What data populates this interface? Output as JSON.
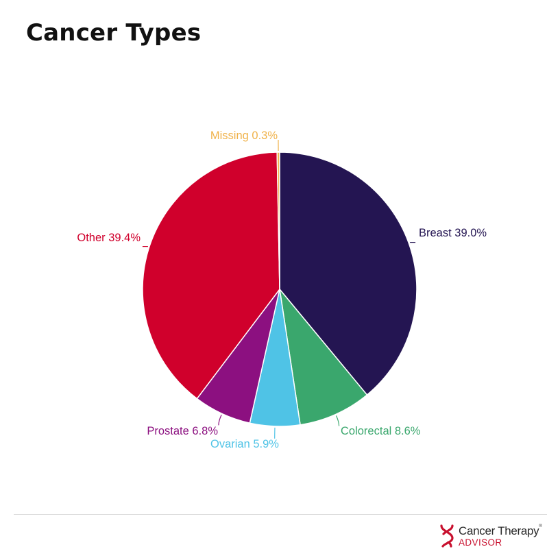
{
  "title": "Cancer Types",
  "chart_data": {
    "type": "pie",
    "slices": [
      {
        "name": "Breast",
        "value": 39.0,
        "label": "Breast 39.0%",
        "color": "#241552"
      },
      {
        "name": "Colorectal",
        "value": 8.6,
        "label": "Colorectal 8.6%",
        "color": "#3aa76d"
      },
      {
        "name": "Ovarian",
        "value": 5.9,
        "label": "Ovarian 5.9%",
        "color": "#4fc3e6"
      },
      {
        "name": "Prostate",
        "value": 6.8,
        "label": "Prostate 6.8%",
        "color": "#8c1080"
      },
      {
        "name": "Other",
        "value": 39.4,
        "label": "Other 39.4%",
        "color": "#d0002c"
      },
      {
        "name": "Missing",
        "value": 0.3,
        "label": "Missing 0.3%",
        "color": "#f0b24a"
      }
    ]
  },
  "brand": {
    "name": "Cancer Therapy",
    "trademark": "®",
    "subtitle": "ADVISOR",
    "color": "#c8102e",
    "icon": "dna-helix-icon"
  }
}
